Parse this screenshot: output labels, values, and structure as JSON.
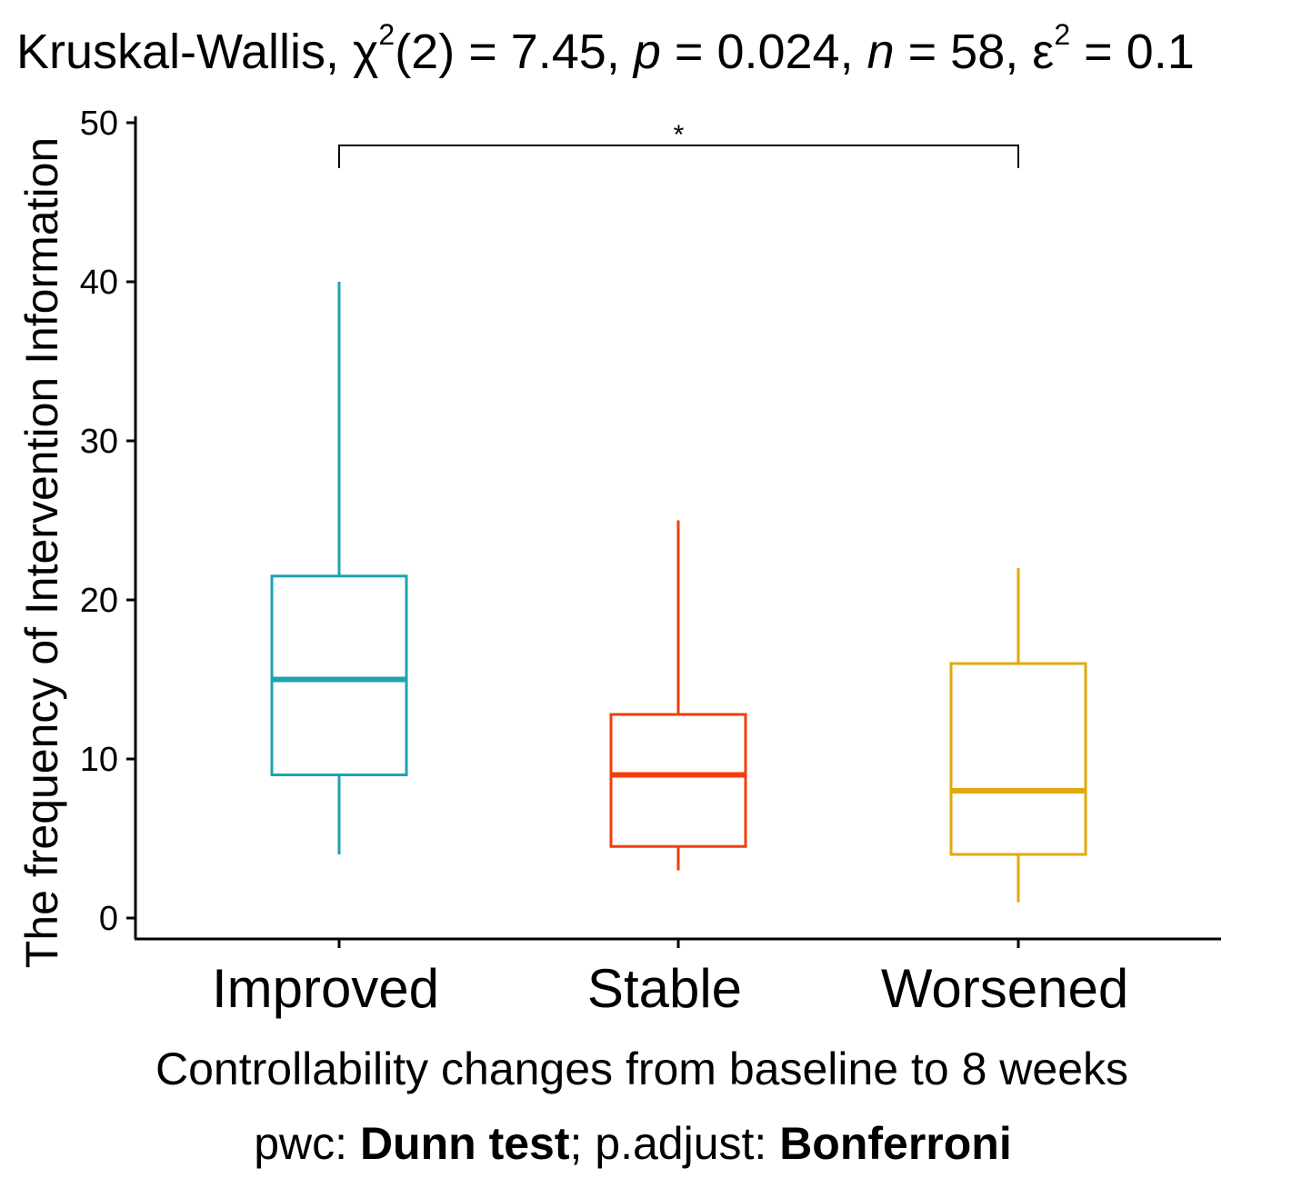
{
  "chart_data": {
    "type": "boxplot",
    "title": {
      "test_name": "Kruskal-Wallis, ",
      "stat_symbol": "χ",
      "stat_exp": "2",
      "stat_df": "(2) = 7.45, ",
      "p_symbol": "p",
      "p_value": " = 0.024, ",
      "n_symbol": "n",
      "n_value": " = 58, ",
      "eff_symbol": "ε",
      "eff_exp": "2",
      "eff_value": " = 0.1"
    },
    "xlabel": "Controllability changes from baseline to 8 weeks",
    "ylabel": "The frequency of Intervention Information",
    "ylim": [
      0,
      50
    ],
    "yticks": [
      0,
      10,
      20,
      30,
      40,
      50
    ],
    "categories": [
      "Improved",
      "Stable",
      "Worsened"
    ],
    "boxes": [
      {
        "name": "Improved",
        "whisker_low": 4,
        "q1": 9,
        "median": 15,
        "q3": 21.5,
        "whisker_high": 40,
        "color": "#1FA3AE"
      },
      {
        "name": "Stable",
        "whisker_low": 3,
        "q1": 4.5,
        "median": 9,
        "q3": 12.8,
        "whisker_high": 25,
        "color": "#F23E0C"
      },
      {
        "name": "Worsened",
        "whisker_low": 1,
        "q1": 4,
        "median": 8,
        "q3": 16,
        "whisker_high": 22,
        "color": "#E1A90E"
      }
    ],
    "comparison": {
      "from": "Improved",
      "to": "Worsened",
      "y": 48,
      "label": "*"
    },
    "caption": {
      "prefix": "pwc: ",
      "method": "Dunn test",
      "middle": "; p.adjust: ",
      "adjust": "Bonferroni"
    }
  }
}
